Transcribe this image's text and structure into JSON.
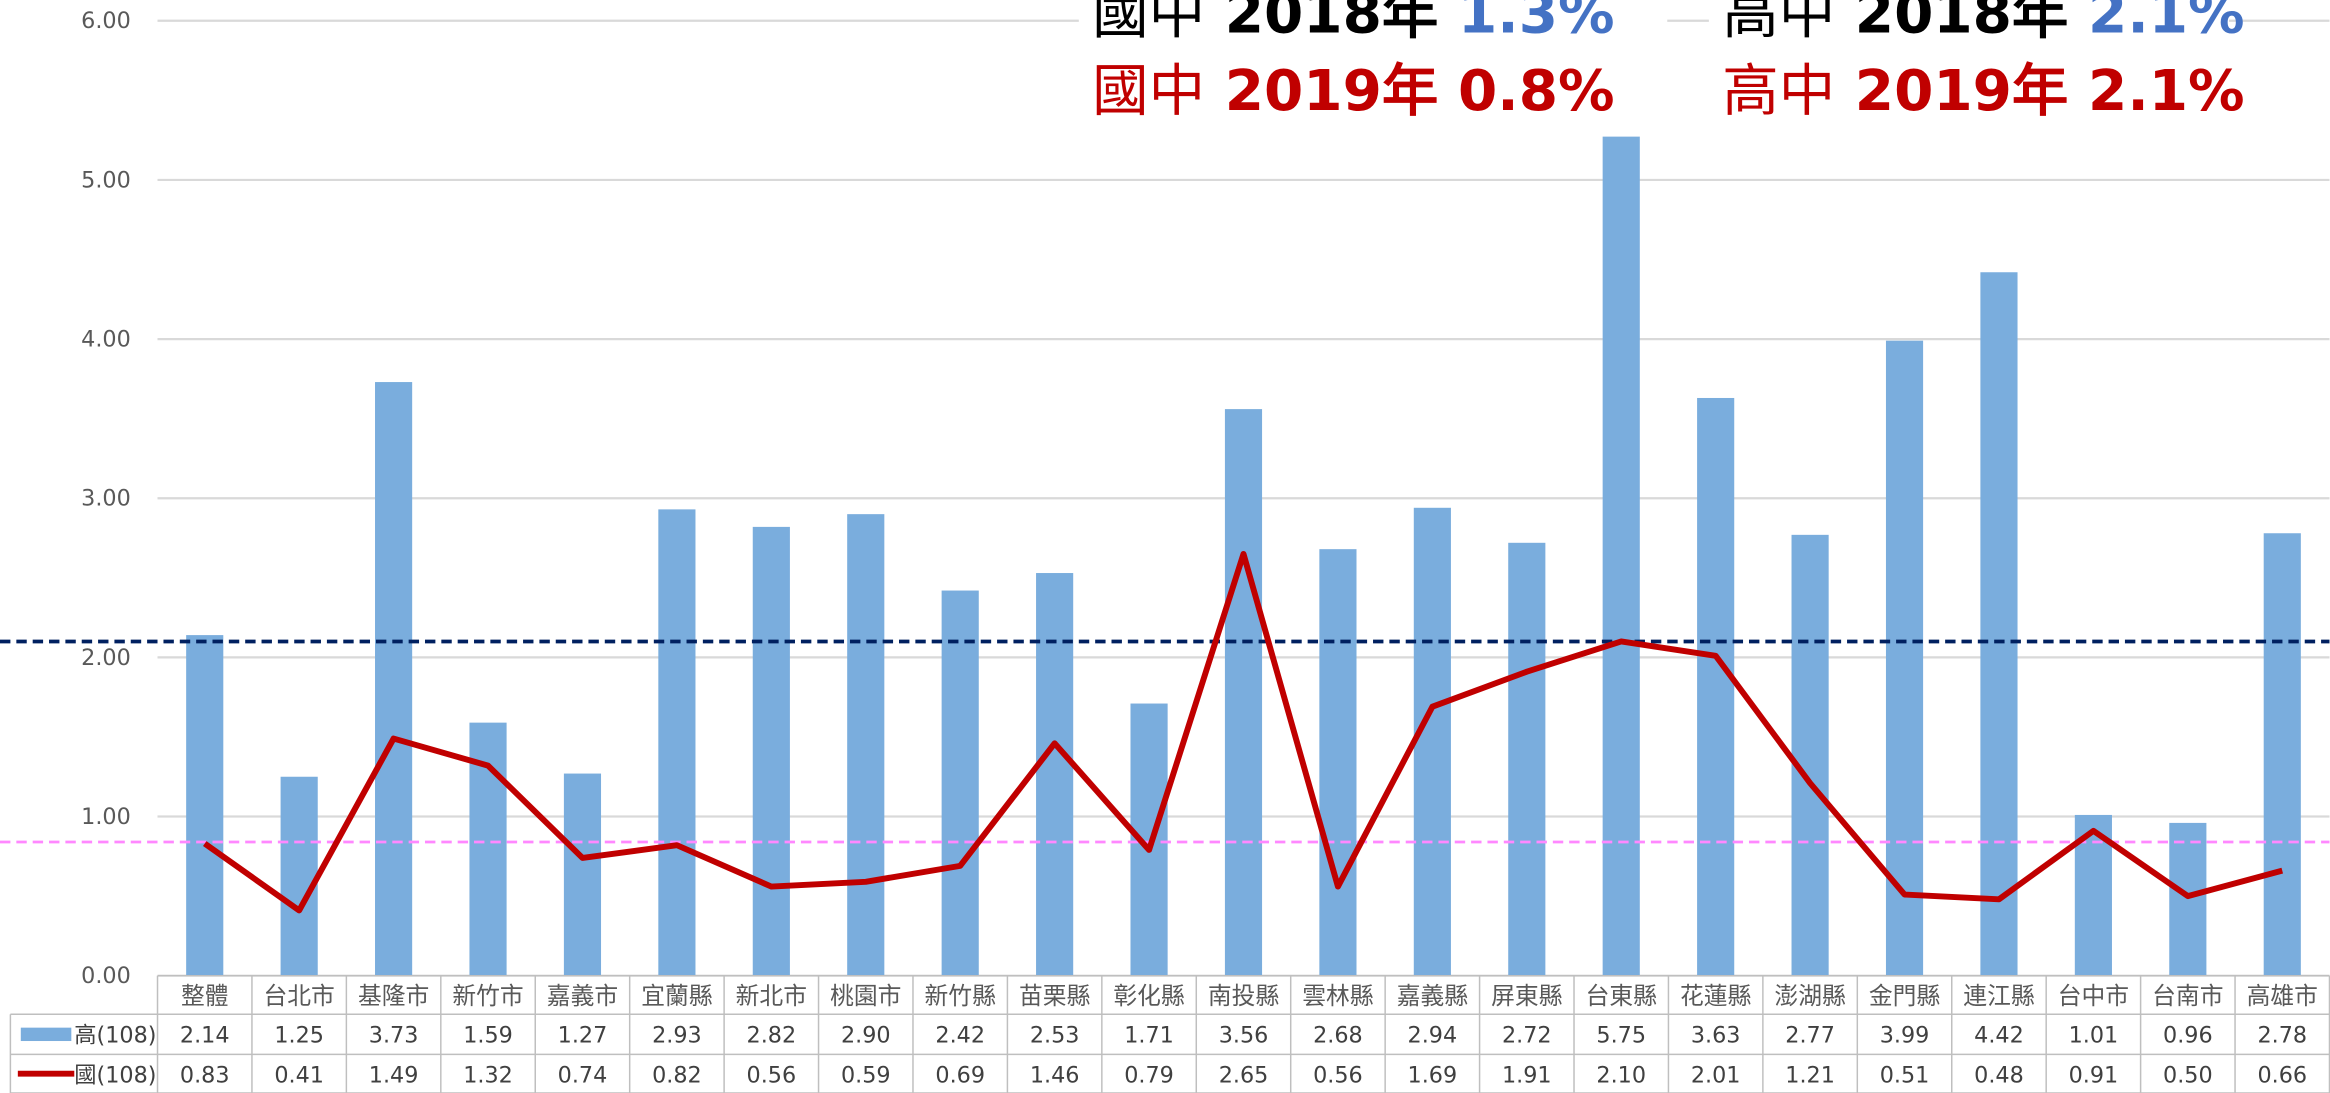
{
  "chart_data": {
    "type": "bar_line",
    "categories": [
      "整體",
      "台北市",
      "基隆市",
      "新竹市",
      "嘉義市",
      "宜蘭縣",
      "新北市",
      "桃園市",
      "新竹縣",
      "苗栗縣",
      "彰化縣",
      "南投縣",
      "雲林縣",
      "嘉義縣",
      "屏東縣",
      "台東縣",
      "花蓮縣",
      "澎湖縣",
      "金門縣",
      "連江縣",
      "台中市",
      "台南市",
      "高雄市"
    ],
    "series": [
      {
        "name": "高(108)",
        "kind": "bar",
        "color": "#7aaddd",
        "values": [
          2.14,
          1.25,
          3.73,
          1.59,
          1.27,
          2.93,
          2.82,
          2.9,
          2.42,
          2.53,
          1.71,
          3.56,
          2.68,
          2.94,
          2.72,
          5.75,
          3.63,
          2.77,
          3.99,
          4.42,
          1.01,
          0.96,
          2.78
        ],
        "value_labels": [
          "2.14",
          "1.25",
          "3.73",
          "1.59",
          "1.27",
          "2.93",
          "2.82",
          "2.90",
          "2.42",
          "2.53",
          "1.71",
          "3.56",
          "2.68",
          "2.94",
          "2.72",
          "5.75",
          "3.63",
          "2.77",
          "3.99",
          "4.42",
          "1.01",
          "0.96",
          "2.78"
        ]
      },
      {
        "name": "國(108)",
        "kind": "line",
        "color": "#c00000",
        "values": [
          0.83,
          0.41,
          1.49,
          1.32,
          0.74,
          0.82,
          0.56,
          0.59,
          0.69,
          1.46,
          0.79,
          2.65,
          0.56,
          1.69,
          1.91,
          2.1,
          2.01,
          1.21,
          0.51,
          0.48,
          0.91,
          0.5,
          0.66
        ],
        "value_labels": [
          "0.83",
          "0.41",
          "1.49",
          "1.32",
          "0.74",
          "0.82",
          "0.56",
          "0.59",
          "0.69",
          "1.46",
          "0.79",
          "2.65",
          "0.56",
          "1.69",
          "1.91",
          "2.10",
          "2.01",
          "1.21",
          "0.51",
          "0.48",
          "0.91",
          "0.50",
          "0.66"
        ]
      }
    ],
    "ylim": [
      0,
      6
    ],
    "yticks": [
      {
        "value": 0,
        "label": "0.00"
      },
      {
        "value": 1,
        "label": "1.00"
      },
      {
        "value": 2,
        "label": "2.00"
      },
      {
        "value": 3,
        "label": "3.00"
      },
      {
        "value": 4,
        "label": "4.00"
      },
      {
        "value": 5,
        "label": "5.00"
      },
      {
        "value": 6,
        "label": "6.00"
      }
    ],
    "grid": true,
    "reference_lines": [
      {
        "value": 2.1,
        "color": "#002060"
      },
      {
        "value": 0.84,
        "color": "#ff88ff"
      }
    ],
    "annotations": [
      {
        "lines": [
          "國中 2018年 1.3%",
          "國中 2019年 0.8%"
        ]
      },
      {
        "lines": [
          "高中 2018年 2.1%",
          "高中 2019年 2.1%"
        ]
      }
    ]
  }
}
